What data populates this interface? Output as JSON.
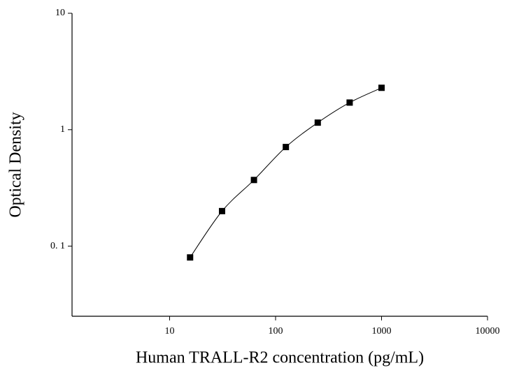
{
  "chart_data": {
    "type": "scatter",
    "xlabel": "Human TRALL-R2 concentration (pg/mL)",
    "ylabel": "Optical Density",
    "x": [
      15.6,
      31.25,
      62.5,
      125,
      250,
      500,
      1000
    ],
    "values": [
      0.08,
      0.2,
      0.37,
      0.71,
      1.15,
      1.71,
      2.29
    ],
    "color": "#000000",
    "xscale": "log",
    "yscale": "log",
    "xlim": [
      1.2,
      10000
    ],
    "ylim": [
      0.025,
      10
    ],
    "xticks": [
      10,
      100,
      1000,
      10000
    ],
    "yticks": [
      {
        "value": 0.1,
        "label": "0. 1"
      },
      1,
      10
    ]
  }
}
